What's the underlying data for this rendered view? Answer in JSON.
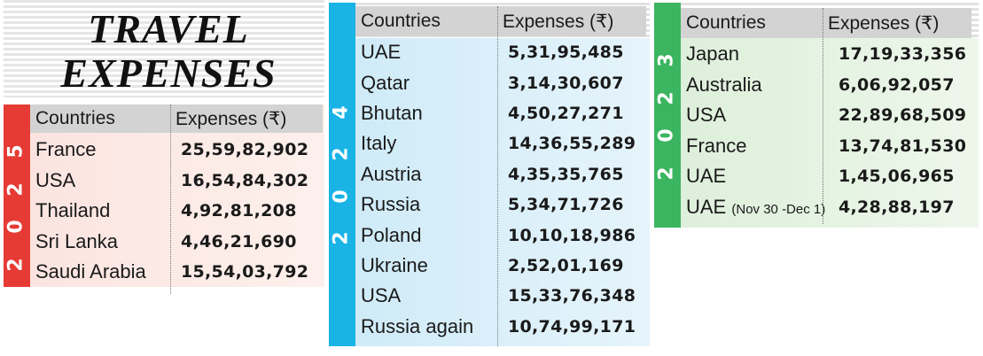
{
  "title": {
    "line1": "TRAVEL",
    "line2": "EXPENSES"
  },
  "colors": {
    "y2025": "#e63b35",
    "y2024": "#1ab3e6",
    "y2023": "#3bb560"
  },
  "tables": {
    "y2025": {
      "year_digits": [
        "2",
        "0",
        "2",
        "5"
      ],
      "header": {
        "countries": "Countries",
        "expenses": "Expenses (₹)"
      },
      "rows": [
        {
          "country": "France",
          "amount": "25,59,82,902"
        },
        {
          "country": "USA",
          "amount": "16,54,84,302"
        },
        {
          "country": "Thailand",
          "amount": "4,92,81,208"
        },
        {
          "country": "Sri Lanka",
          "amount": "4,46,21,690"
        },
        {
          "country": "Saudi Arabia",
          "amount": "15,54,03,792"
        }
      ]
    },
    "y2024": {
      "year_digits": [
        "2",
        "0",
        "2",
        "4"
      ],
      "header": {
        "countries": "Countries",
        "expenses": "Expenses (₹)"
      },
      "rows": [
        {
          "country": "UAE",
          "amount": "5,31,95,485"
        },
        {
          "country": "Qatar",
          "amount": "3,14,30,607"
        },
        {
          "country": "Bhutan",
          "amount": "4,50,27,271"
        },
        {
          "country": "Italy",
          "amount": "14,36,55,289"
        },
        {
          "country": "Austria",
          "amount": "4,35,35,765"
        },
        {
          "country": "Russia",
          "amount": "5,34,71,726"
        },
        {
          "country": "Poland",
          "amount": "10,10,18,986"
        },
        {
          "country": "Ukraine",
          "amount": "2,52,01,169"
        },
        {
          "country": "USA",
          "amount": "15,33,76,348"
        },
        {
          "country": "Russia again",
          "amount": "10,74,99,171"
        }
      ]
    },
    "y2023": {
      "year_digits": [
        "2",
        "0",
        "2",
        "3"
      ],
      "header": {
        "countries": "Countries",
        "expenses": "Expenses (₹)"
      },
      "rows": [
        {
          "country": "Japan",
          "amount": "17,19,33,356"
        },
        {
          "country": "Australia",
          "amount": "6,06,92,057"
        },
        {
          "country": "USA",
          "amount": "22,89,68,509"
        },
        {
          "country": "France",
          "amount": "13,74,81,530"
        },
        {
          "country": "UAE",
          "amount": "1,45,06,965"
        },
        {
          "country": "UAE",
          "note": "(Nov 30 -Dec 1)",
          "amount": "4,28,88,197"
        }
      ]
    }
  }
}
